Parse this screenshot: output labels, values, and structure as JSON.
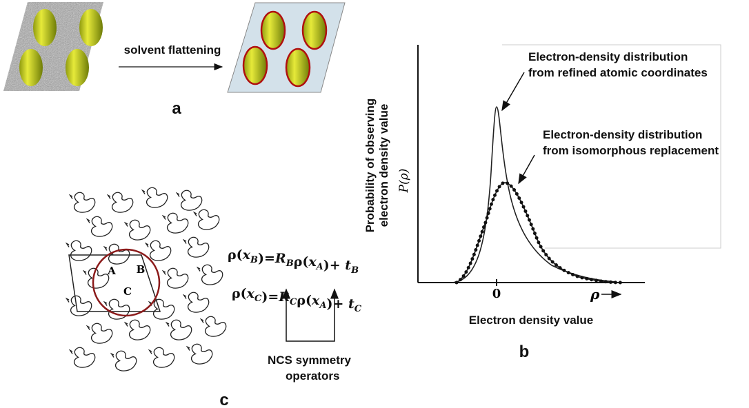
{
  "panel_a": {
    "arrow_label": "solvent flattening",
    "label": "a"
  },
  "panel_b": {
    "annotations": [
      [
        "Electron-density distribution",
        "from refined atomic coordinates"
      ],
      [
        "Electron-density distribution",
        "from isomorphous replacement"
      ]
    ],
    "y_axis_title": [
      "Probability of observing",
      "electron density value"
    ],
    "y_axis_symbol": "P(ρ)",
    "x_tick": "0",
    "x_symbol": "ρ",
    "x_axis_title": "Electron density value",
    "label": "b"
  },
  "panel_c": {
    "molecules": [
      "A",
      "B",
      "C"
    ],
    "equations": [
      [
        {
          "text": "ρ("
        },
        {
          "text": "x",
          "sub": "B"
        },
        {
          "text": ")="
        },
        {
          "text": "R",
          "sub": "B"
        },
        {
          "text": "ρ("
        },
        {
          "text": "x",
          "sub": "A"
        },
        {
          "text": ")+ "
        },
        {
          "text": "t",
          "sub": "B"
        }
      ],
      [
        {
          "text": "ρ("
        },
        {
          "text": "x",
          "sub": "C"
        },
        {
          "text": ")="
        },
        {
          "text": "R",
          "sub": "C"
        },
        {
          "text": "ρ("
        },
        {
          "text": "x",
          "sub": "A"
        },
        {
          "text": ")+ "
        },
        {
          "text": "t",
          "sub": "C"
        }
      ]
    ],
    "operator_note": [
      "NCS symmetry",
      "operators"
    ],
    "label": "c"
  }
}
